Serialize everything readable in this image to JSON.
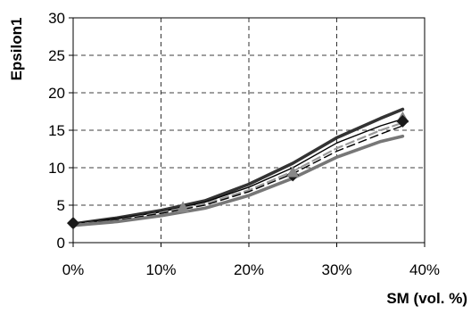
{
  "chart_data": {
    "type": "line",
    "xlabel": "SM (vol. %)",
    "ylabel": "Epsilon1",
    "xlim": [
      0,
      40
    ],
    "ylim": [
      0,
      30
    ],
    "x_ticks": [
      0,
      10,
      20,
      30,
      40
    ],
    "x_tick_labels": [
      "0%",
      "10%",
      "20%",
      "30%",
      "40%"
    ],
    "y_ticks": [
      0,
      5,
      10,
      15,
      20,
      25,
      30
    ],
    "y_tick_labels": [
      "0",
      "5",
      "10",
      "15",
      "20",
      "25",
      "30"
    ],
    "grid": true,
    "legend": "none",
    "series": [
      {
        "style": "thick-dark-solid",
        "color": "#333333",
        "x": [
          0,
          5,
          10,
          15,
          20,
          25,
          30,
          35,
          37.5
        ],
        "y": [
          2.5,
          3.3,
          4.3,
          5.6,
          7.8,
          10.6,
          14.0,
          16.6,
          17.8
        ]
      },
      {
        "style": "thin-black-solid",
        "color": "#000000",
        "x": [
          0,
          5,
          10,
          15,
          20,
          25,
          30,
          35,
          37.5
        ],
        "y": [
          2.5,
          3.2,
          4.1,
          5.4,
          7.4,
          10.0,
          13.3,
          15.6,
          16.5
        ]
      },
      {
        "style": "dashed-light-gray",
        "color": "#999999",
        "x": [
          0,
          5,
          10,
          15,
          20,
          25,
          30,
          35,
          37.5
        ],
        "y": [
          2.4,
          3.0,
          4.0,
          5.2,
          7.0,
          9.5,
          12.6,
          15.0,
          16.0
        ]
      },
      {
        "style": "dashed-black",
        "color": "#000000",
        "x": [
          0,
          5,
          10,
          15,
          20,
          25,
          30,
          35,
          37.5
        ],
        "y": [
          2.4,
          3.0,
          3.9,
          5.0,
          6.8,
          9.2,
          12.2,
          14.5,
          15.6
        ]
      },
      {
        "style": "thick-gray-solid",
        "color": "#777777",
        "x": [
          0,
          5,
          10,
          15,
          20,
          25,
          30,
          35,
          37.5
        ],
        "y": [
          2.3,
          2.8,
          3.6,
          4.6,
          6.3,
          8.6,
          11.4,
          13.5,
          14.2
        ]
      }
    ],
    "markers": [
      {
        "shape": "diamond",
        "color": "#1a1a1a",
        "x": 0,
        "y": 2.6
      },
      {
        "shape": "triangle",
        "color": "#888888",
        "x": 12.5,
        "y": 4.7
      },
      {
        "shape": "diamond",
        "color": "#1a1a1a",
        "x": 25,
        "y": 9.0
      },
      {
        "shape": "triangle",
        "color": "#888888",
        "x": 25,
        "y": 9.4
      },
      {
        "shape": "triangle",
        "color": "#888888",
        "x": 37.5,
        "y": 16.7
      },
      {
        "shape": "diamond",
        "color": "#1a1a1a",
        "x": 37.5,
        "y": 16.2
      }
    ]
  }
}
